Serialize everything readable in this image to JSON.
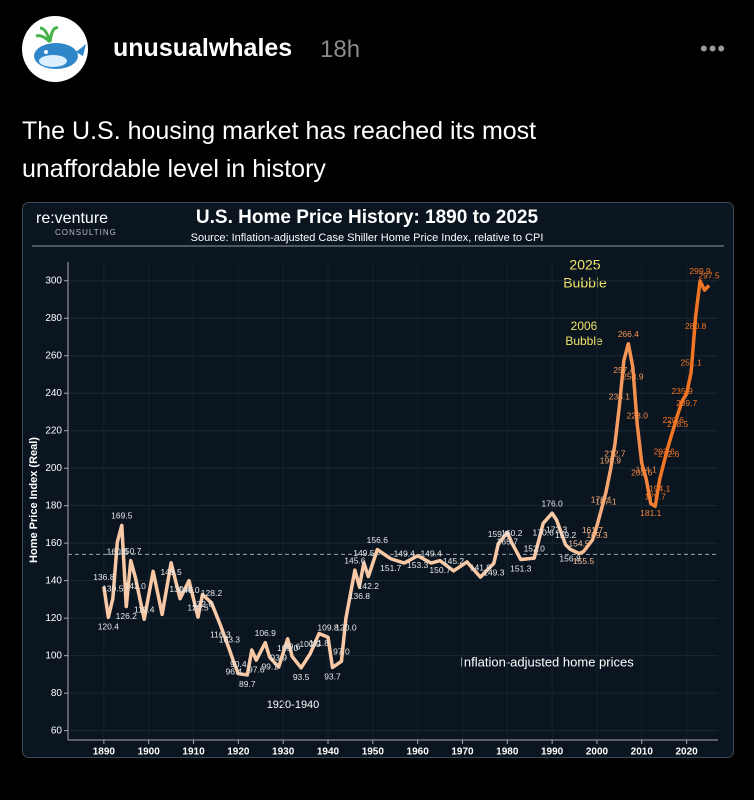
{
  "post": {
    "username": "unusualwhales",
    "time": "18h",
    "text": "The U.S. housing market has reached its most unaffordable level in history"
  },
  "chart_data": {
    "type": "line",
    "title": "U.S. Home Price History: 1890 to 2025",
    "subtitle": "Source: Inflation-adjusted Case Shiller Home Price Index, relative to CPI",
    "brand": "re:venture",
    "brand_sub": "CONSULTING",
    "y_label": "Home Price Index (Real)",
    "annotations": [
      "2006",
      "Bubble",
      "2025",
      "Bubble",
      "1920-1940",
      "Inflation-adjusted home prices"
    ],
    "x": [
      1890,
      1891,
      1892,
      1893,
      1894,
      1895,
      1896,
      1897,
      1899,
      1901,
      1903,
      1905,
      1907,
      1909,
      1911,
      1912,
      1914,
      1916,
      1918,
      1919,
      1920,
      1922,
      1923,
      1924,
      1926,
      1927,
      1929,
      1931,
      1932,
      1934,
      1936,
      1938,
      1940,
      1941,
      1943,
      1944,
      1946,
      1947,
      1948,
      1949,
      1951,
      1954,
      1957,
      1960,
      1963,
      1965,
      1968,
      1971,
      1974,
      1977,
      1978,
      1980,
      1981,
      1983,
      1986,
      1988,
      1990,
      1991,
      1993,
      1994,
      1996,
      1997,
      1999,
      2000,
      2001,
      2002,
      2003,
      2004,
      2005,
      2006,
      2007,
      2008,
      2009,
      2010,
      2011,
      2012,
      2013,
      2014,
      2015,
      2016,
      2017,
      2018,
      2019,
      2020,
      2021,
      2022,
      2023,
      2024,
      2025
    ],
    "series": [
      {
        "name": "Inflation-adjusted home prices",
        "color": "#f9c9a6",
        "color_end": "#f27524",
        "values": [
          136.8,
          120.4,
          130.5,
          160.6,
          169.5,
          126.2,
          150.7,
          142.0,
          119.4,
          145,
          122,
          149.5,
          130.4,
          140.0,
          120.5,
          132.6,
          128.2,
          116.3,
          103.3,
          96.4,
          90.4,
          89.7,
          103,
          97.6,
          106.9,
          99.1,
          93.9,
          109.0,
          99.6,
          93.5,
          100.9,
          111.8,
          109.8,
          93.7,
          97.0,
          120.0,
          145.6,
          136.8,
          149.5,
          142.2,
          156.6,
          151.7,
          149.4,
          153.3,
          149.4,
          150.7,
          145.2,
          150,
          141.9,
          149.3,
          159.8,
          165.7,
          160.2,
          151.3,
          152.0,
          170.6,
          176.0,
          172.3,
          159.2,
          156.8,
          154.5,
          155.5,
          161.7,
          169.3,
          178.1,
          187.1,
          198.9,
          212.7,
          233.1,
          257.4,
          266.4,
          253.9,
          223.0,
          202.6,
          194.1,
          181.1,
          179.7,
          194.1,
          203.6,
          212.6,
          220.6,
          228.5,
          235.9,
          239.7,
          251.1,
          280.8,
          299.9,
          295,
          297.5
        ],
        "value_labels": [
          "136.8",
          "120.4",
          "130.5",
          "160.6",
          "169.5",
          "126.2",
          "150.7",
          "142.0",
          "119.4",
          null,
          null,
          "149.5",
          "130.4",
          "140.0",
          "120.5",
          "132.6",
          "128.2",
          "116.3",
          "103.3",
          "96.4",
          "90.4",
          "89.7",
          null,
          "97.6",
          "106.9",
          "99.1",
          "93.9",
          "109.0",
          "99.6",
          "93.5",
          "100.9",
          "111.8",
          "109.8",
          "93.7",
          "97.0",
          "120.0",
          "145.6",
          "136.8",
          "149.5",
          "142.2",
          "156.6",
          "151.7",
          "149.4",
          "153.3",
          "149.4",
          "150.7",
          "145.2",
          null,
          "141.9",
          "149.3",
          "159.8",
          "165.7",
          "160.2",
          "151.3",
          "152.0",
          "170.6",
          "176.0",
          "172.3",
          "159.2",
          "156.8",
          "154.5",
          "155.5",
          "161.7",
          "169.3",
          "178.1",
          "187.1",
          "198.9",
          "212.7",
          "233.1",
          "257.4",
          "266.4",
          "253.9",
          "223.0",
          "202.6",
          "194.1",
          "181.1",
          "179.7",
          "194.1",
          "203.6",
          "212.6",
          "220.6",
          "228.5",
          "235.9",
          "239.7",
          "251.1",
          "280.8",
          "299.9",
          null,
          "297.5"
        ]
      }
    ],
    "hline": 154,
    "xlim": [
      1882,
      2027
    ],
    "ylim": [
      55,
      310
    ],
    "xticks": [
      1890,
      1900,
      1910,
      1920,
      1930,
      1940,
      1950,
      1960,
      1970,
      1980,
      1990,
      2000,
      2010,
      2020
    ],
    "yticks": [
      60,
      80,
      100,
      120,
      140,
      160,
      180,
      200,
      220,
      240,
      260,
      280,
      300
    ],
    "grid": true
  }
}
